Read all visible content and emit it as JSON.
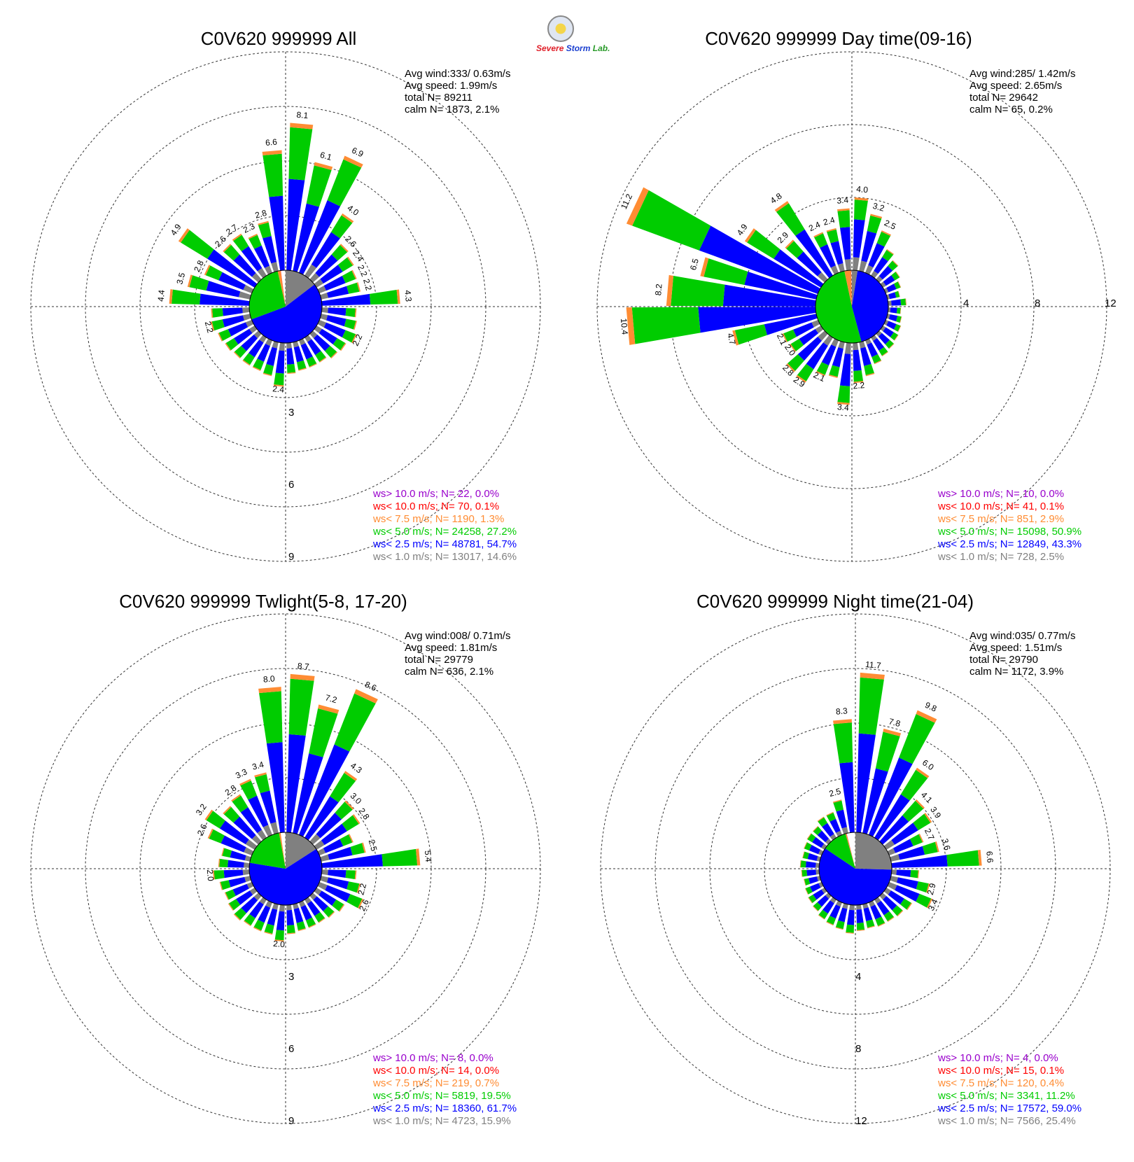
{
  "logo": {
    "line1": "Severe",
    "line2": "Storm",
    "line3": "Lab."
  },
  "colors": {
    "calm": "#0000ff",
    "ws10plus": "#9900cc",
    "ws10": "#ff0000",
    "ws75": "#ff8c33",
    "ws50": "#00cc00",
    "ws25": "#0000ff",
    "ws10low": "#808080"
  },
  "panels": [
    {
      "title": "C0V620 999999 All",
      "stats": {
        "avg_wind": "Avg wind:333/ 0.63m/s",
        "avg_speed": "Avg speed: 1.99m/s",
        "total": "total N=      89211",
        "calm": "calm N=   1873,   2.1%"
      },
      "legend": [
        "ws> 10.0 m/s; N=     22,  0.0%",
        "ws< 10.0 m/s; N=     70,  0.1%",
        "ws<  7.5 m/s; N=  1190,  1.3%",
        "ws<  5.0 m/s; N= 24258, 27.2%",
        "ws<  2.5 m/s; N= 48781, 54.7%",
        "ws<  1.0 m/s; N= 13017, 14.6%"
      ],
      "ring_labels": [
        "3",
        "6",
        "9"
      ]
    },
    {
      "title": "C0V620 999999 Day time(09-16)",
      "stats": {
        "avg_wind": "Avg wind:285/ 1.42m/s",
        "avg_speed": "Avg speed: 2.65m/s",
        "total": "total N=      29642",
        "calm": "calm N=     65,   0.2%"
      },
      "legend": [
        "ws> 10.0 m/s; N=     10,  0.0%",
        "ws< 10.0 m/s; N=     41,  0.1%",
        "ws<  7.5 m/s; N=    851,  2.9%",
        "ws<  5.0 m/s; N= 15098, 50.9%",
        "ws<  2.5 m/s; N= 12849, 43.3%",
        "ws<  1.0 m/s; N=    728,  2.5%"
      ],
      "ring_labels": [
        "4",
        "8",
        "12"
      ]
    },
    {
      "title": "C0V620 999999 Twlight(5-8, 17-20)",
      "stats": {
        "avg_wind": "Avg wind:008/ 0.71m/s",
        "avg_speed": "Avg speed: 1.81m/s",
        "total": "total N=      29779",
        "calm": "calm N=    636,   2.1%"
      },
      "legend": [
        "ws> 10.0 m/s; N=      8,  0.0%",
        "ws< 10.0 m/s; N=     14,  0.0%",
        "ws<  7.5 m/s; N=    219,  0.7%",
        "ws<  5.0 m/s; N=  5819, 19.5%",
        "ws<  2.5 m/s; N= 18360, 61.7%",
        "ws<  1.0 m/s; N=  4723, 15.9%"
      ],
      "ring_labels": [
        "3",
        "6",
        "9"
      ]
    },
    {
      "title": "C0V620 999999 Night time(21-04)",
      "stats": {
        "avg_wind": "Avg wind:035/ 0.77m/s",
        "avg_speed": "Avg speed: 1.51m/s",
        "total": "total N=      29790",
        "calm": "calm N=   1172,   3.9%"
      },
      "legend": [
        "ws> 10.0 m/s; N=      4,  0.0%",
        "ws< 10.0 m/s; N=     15,  0.1%",
        "ws<  7.5 m/s; N=    120,  0.4%",
        "ws<  5.0 m/s; N=  3341, 11.2%",
        "ws<  2.5 m/s; N= 17572, 59.0%",
        "ws<  1.0 m/s; N=  7566, 25.4%"
      ],
      "ring_labels": [
        "4",
        "8",
        "12"
      ]
    }
  ],
  "chart_data": [
    {
      "type": "windrose",
      "title": "C0V620 999999 All",
      "ring_max": 12,
      "rings": [
        3,
        6,
        9,
        12
      ],
      "calm_pie": [
        {
          "band": "ws<1.0",
          "share": 0.146
        },
        {
          "band": "ws<2.5",
          "share": 0.547
        },
        {
          "band": "ws<5.0",
          "share": 0.272
        },
        {
          "band": "ws<7.5",
          "share": 0.013
        },
        {
          "band": "ws<10.0",
          "share": 0.001
        }
      ],
      "directions": [
        {
          "dir": 5,
          "total": 8.1,
          "label": "8.1"
        },
        {
          "dir": 355,
          "total": 6.6,
          "label": "6.6"
        },
        {
          "dir": 15,
          "total": 6.1,
          "label": "6.1"
        },
        {
          "dir": 25,
          "total": 6.9,
          "label": "6.9"
        },
        {
          "dir": 35,
          "total": 4.0,
          "label": "4.0"
        },
        {
          "dir": 45,
          "total": 2.6,
          "label": "2.6"
        },
        {
          "dir": 55,
          "total": 2.4,
          "label": "2.4"
        },
        {
          "dir": 65,
          "total": 2.2,
          "label": "2.2"
        },
        {
          "dir": 75,
          "total": 2.2,
          "label": "2.2"
        },
        {
          "dir": 85,
          "total": 4.3,
          "label": "4.3"
        },
        {
          "dir": 95,
          "total": 1.9
        },
        {
          "dir": 105,
          "total": 2.0
        },
        {
          "dir": 115,
          "total": 2.2,
          "label": "2.2"
        },
        {
          "dir": 125,
          "total": 1.9
        },
        {
          "dir": 135,
          "total": 1.8
        },
        {
          "dir": 145,
          "total": 1.6
        },
        {
          "dir": 155,
          "total": 1.6
        },
        {
          "dir": 165,
          "total": 1.6
        },
        {
          "dir": 175,
          "total": 1.7
        },
        {
          "dir": 185,
          "total": 2.4,
          "label": "2.4"
        },
        {
          "dir": 195,
          "total": 1.9
        },
        {
          "dir": 205,
          "total": 1.8
        },
        {
          "dir": 215,
          "total": 1.8
        },
        {
          "dir": 225,
          "total": 1.8
        },
        {
          "dir": 235,
          "total": 1.9
        },
        {
          "dir": 245,
          "total": 2.0
        },
        {
          "dir": 255,
          "total": 2.2,
          "label": "2.2"
        },
        {
          "dir": 265,
          "total": 2.1
        },
        {
          "dir": 275,
          "total": 4.4,
          "label": "4.4"
        },
        {
          "dir": 285,
          "total": 3.5,
          "label": "3.5"
        },
        {
          "dir": 295,
          "total": 2.8,
          "label": "2.8"
        },
        {
          "dir": 305,
          "total": 4.9,
          "label": "4.9"
        },
        {
          "dir": 315,
          "total": 2.6,
          "label": "2.6"
        },
        {
          "dir": 325,
          "total": 2.7,
          "label": "2.7"
        },
        {
          "dir": 335,
          "total": 2.3,
          "label": "2.3"
        },
        {
          "dir": 345,
          "total": 2.8,
          "label": "2.8"
        }
      ]
    },
    {
      "type": "windrose",
      "title": "C0V620 999999 Day time(09-16)",
      "ring_max": 12,
      "rings": [
        4,
        8,
        12
      ],
      "calm_pie": [
        {
          "band": "ws<1.0",
          "share": 0.025
        },
        {
          "band": "ws<2.5",
          "share": 0.433
        },
        {
          "band": "ws<5.0",
          "share": 0.509
        },
        {
          "band": "ws<7.5",
          "share": 0.029
        },
        {
          "band": "ws<10.0",
          "share": 0.001
        }
      ],
      "directions": [
        {
          "dir": 5,
          "total": 4.0,
          "label": "4.0"
        },
        {
          "dir": 355,
          "total": 3.4,
          "label": "3.4"
        },
        {
          "dir": 15,
          "total": 3.2,
          "label": "3.2"
        },
        {
          "dir": 25,
          "total": 2.5,
          "label": "2.5"
        },
        {
          "dir": 35,
          "total": 1.7
        },
        {
          "dir": 45,
          "total": 1.4
        },
        {
          "dir": 55,
          "total": 1.1
        },
        {
          "dir": 65,
          "total": 0.9
        },
        {
          "dir": 75,
          "total": 0.7
        },
        {
          "dir": 85,
          "total": 1.0
        },
        {
          "dir": 95,
          "total": 0.7
        },
        {
          "dir": 105,
          "total": 0.8
        },
        {
          "dir": 115,
          "total": 0.9
        },
        {
          "dir": 125,
          "total": 1.0
        },
        {
          "dir": 135,
          "total": 1.1
        },
        {
          "dir": 145,
          "total": 1.2
        },
        {
          "dir": 155,
          "total": 1.4
        },
        {
          "dir": 165,
          "total": 1.9
        },
        {
          "dir": 175,
          "total": 2.2,
          "label": "2.2"
        },
        {
          "dir": 185,
          "total": 3.4,
          "label": "3.4"
        },
        {
          "dir": 195,
          "total": 2.0
        },
        {
          "dir": 205,
          "total": 2.1,
          "label": "2.1"
        },
        {
          "dir": 215,
          "total": 2.9,
          "label": "2.9"
        },
        {
          "dir": 225,
          "total": 2.8,
          "label": "2.8"
        },
        {
          "dir": 235,
          "total": 2.0,
          "label": "2.0"
        },
        {
          "dir": 245,
          "total": 2.1,
          "label": "2.1"
        },
        {
          "dir": 255,
          "total": 4.7,
          "label": "4.7"
        },
        {
          "dir": 265,
          "total": 10.4,
          "label": "10.4"
        },
        {
          "dir": 275,
          "total": 8.2,
          "label": "8.2"
        },
        {
          "dir": 285,
          "total": 6.5,
          "label": "6.5"
        },
        {
          "dir": 295,
          "total": 11.2,
          "label": "11.2"
        },
        {
          "dir": 305,
          "total": 4.9,
          "label": "4.9"
        },
        {
          "dir": 315,
          "total": 2.9,
          "label": "2.9"
        },
        {
          "dir": 325,
          "total": 4.8,
          "label": "4.8"
        },
        {
          "dir": 335,
          "total": 2.4,
          "label": "2.4"
        },
        {
          "dir": 345,
          "total": 2.4,
          "label": "2.4"
        }
      ]
    },
    {
      "type": "windrose",
      "title": "C0V620 999999 Twlight(5-8, 17-20)",
      "ring_max": 12,
      "rings": [
        3,
        6,
        9,
        12
      ],
      "calm_pie": [
        {
          "band": "ws<1.0",
          "share": 0.159
        },
        {
          "band": "ws<2.5",
          "share": 0.617
        },
        {
          "band": "ws<5.0",
          "share": 0.195
        },
        {
          "band": "ws<7.5",
          "share": 0.007
        }
      ],
      "directions": [
        {
          "dir": 5,
          "total": 8.7,
          "label": "8.7"
        },
        {
          "dir": 355,
          "total": 8.0,
          "label": "8.0"
        },
        {
          "dir": 15,
          "total": 7.2,
          "label": "7.2"
        },
        {
          "dir": 25,
          "total": 8.6,
          "label": "8.6"
        },
        {
          "dir": 35,
          "total": 4.3,
          "label": "4.3"
        },
        {
          "dir": 45,
          "total": 3.0,
          "label": "3.0"
        },
        {
          "dir": 55,
          "total": 2.8,
          "label": "2.8"
        },
        {
          "dir": 65,
          "total": 2.0
        },
        {
          "dir": 75,
          "total": 2.5,
          "label": "2.5"
        },
        {
          "dir": 85,
          "total": 5.4,
          "label": "5.4"
        },
        {
          "dir": 95,
          "total": 1.9
        },
        {
          "dir": 105,
          "total": 2.2,
          "label": "2.2"
        },
        {
          "dir": 115,
          "total": 2.6,
          "label": "2.6"
        },
        {
          "dir": 125,
          "total": 1.8
        },
        {
          "dir": 135,
          "total": 1.6
        },
        {
          "dir": 145,
          "total": 1.5
        },
        {
          "dir": 155,
          "total": 1.5
        },
        {
          "dir": 165,
          "total": 1.5
        },
        {
          "dir": 175,
          "total": 1.6
        },
        {
          "dir": 185,
          "total": 2.0,
          "label": "2.0"
        },
        {
          "dir": 195,
          "total": 1.7
        },
        {
          "dir": 205,
          "total": 1.7
        },
        {
          "dir": 215,
          "total": 1.7
        },
        {
          "dir": 225,
          "total": 1.8
        },
        {
          "dir": 235,
          "total": 1.7
        },
        {
          "dir": 245,
          "total": 1.6
        },
        {
          "dir": 255,
          "total": 1.7
        },
        {
          "dir": 265,
          "total": 2.0,
          "label": "2.0"
        },
        {
          "dir": 275,
          "total": 1.7
        },
        {
          "dir": 285,
          "total": 1.6
        },
        {
          "dir": 295,
          "total": 2.6,
          "label": "2.6"
        },
        {
          "dir": 305,
          "total": 3.2,
          "label": "3.2"
        },
        {
          "dir": 315,
          "total": 2.6
        },
        {
          "dir": 325,
          "total": 2.8,
          "label": "2.8"
        },
        {
          "dir": 335,
          "total": 3.3,
          "label": "3.3"
        },
        {
          "dir": 345,
          "total": 3.4,
          "label": "3.4"
        }
      ]
    },
    {
      "type": "windrose",
      "title": "C0V620 999999 Night time(21-04)",
      "ring_max": 16,
      "rings": [
        4,
        8,
        12,
        16
      ],
      "calm_pie": [
        {
          "band": "ws<1.0",
          "share": 0.254
        },
        {
          "band": "ws<2.5",
          "share": 0.59
        },
        {
          "band": "ws<5.0",
          "share": 0.112
        },
        {
          "band": "ws<7.5",
          "share": 0.004
        },
        {
          "band": "ws<10.0",
          "share": 0.001
        }
      ],
      "directions": [
        {
          "dir": 5,
          "total": 11.7,
          "label": "11.7"
        },
        {
          "dir": 355,
          "total": 8.3,
          "label": "8.3"
        },
        {
          "dir": 15,
          "total": 7.8,
          "label": "7.8"
        },
        {
          "dir": 25,
          "total": 9.8,
          "label": "9.8"
        },
        {
          "dir": 35,
          "total": 6.0,
          "label": "6.0"
        },
        {
          "dir": 45,
          "total": 4.1,
          "label": "4.1"
        },
        {
          "dir": 55,
          "total": 3.9,
          "label": "3.9"
        },
        {
          "dir": 65,
          "total": 2.7,
          "label": "2.7"
        },
        {
          "dir": 75,
          "total": 3.6,
          "label": "3.6"
        },
        {
          "dir": 85,
          "total": 6.6,
          "label": "6.6"
        },
        {
          "dir": 95,
          "total": 2.0
        },
        {
          "dir": 105,
          "total": 2.9,
          "label": "2.9"
        },
        {
          "dir": 115,
          "total": 3.4,
          "label": "3.4"
        },
        {
          "dir": 125,
          "total": 2.2
        },
        {
          "dir": 135,
          "total": 2.0
        },
        {
          "dir": 145,
          "total": 1.9
        },
        {
          "dir": 155,
          "total": 1.9
        },
        {
          "dir": 165,
          "total": 1.8
        },
        {
          "dir": 175,
          "total": 1.9
        },
        {
          "dir": 185,
          "total": 2.1
        },
        {
          "dir": 195,
          "total": 1.9
        },
        {
          "dir": 205,
          "total": 1.8
        },
        {
          "dir": 215,
          "total": 1.7
        },
        {
          "dir": 225,
          "total": 1.5
        },
        {
          "dir": 235,
          "total": 1.4
        },
        {
          "dir": 245,
          "total": 1.3
        },
        {
          "dir": 255,
          "total": 1.2
        },
        {
          "dir": 265,
          "total": 1.3
        },
        {
          "dir": 275,
          "total": 1.4
        },
        {
          "dir": 285,
          "total": 1.3
        },
        {
          "dir": 295,
          "total": 1.4
        },
        {
          "dir": 305,
          "total": 1.5
        },
        {
          "dir": 315,
          "total": 1.5
        },
        {
          "dir": 325,
          "total": 1.8
        },
        {
          "dir": 335,
          "total": 1.8
        },
        {
          "dir": 345,
          "total": 2.5,
          "label": "2.5"
        }
      ]
    }
  ]
}
